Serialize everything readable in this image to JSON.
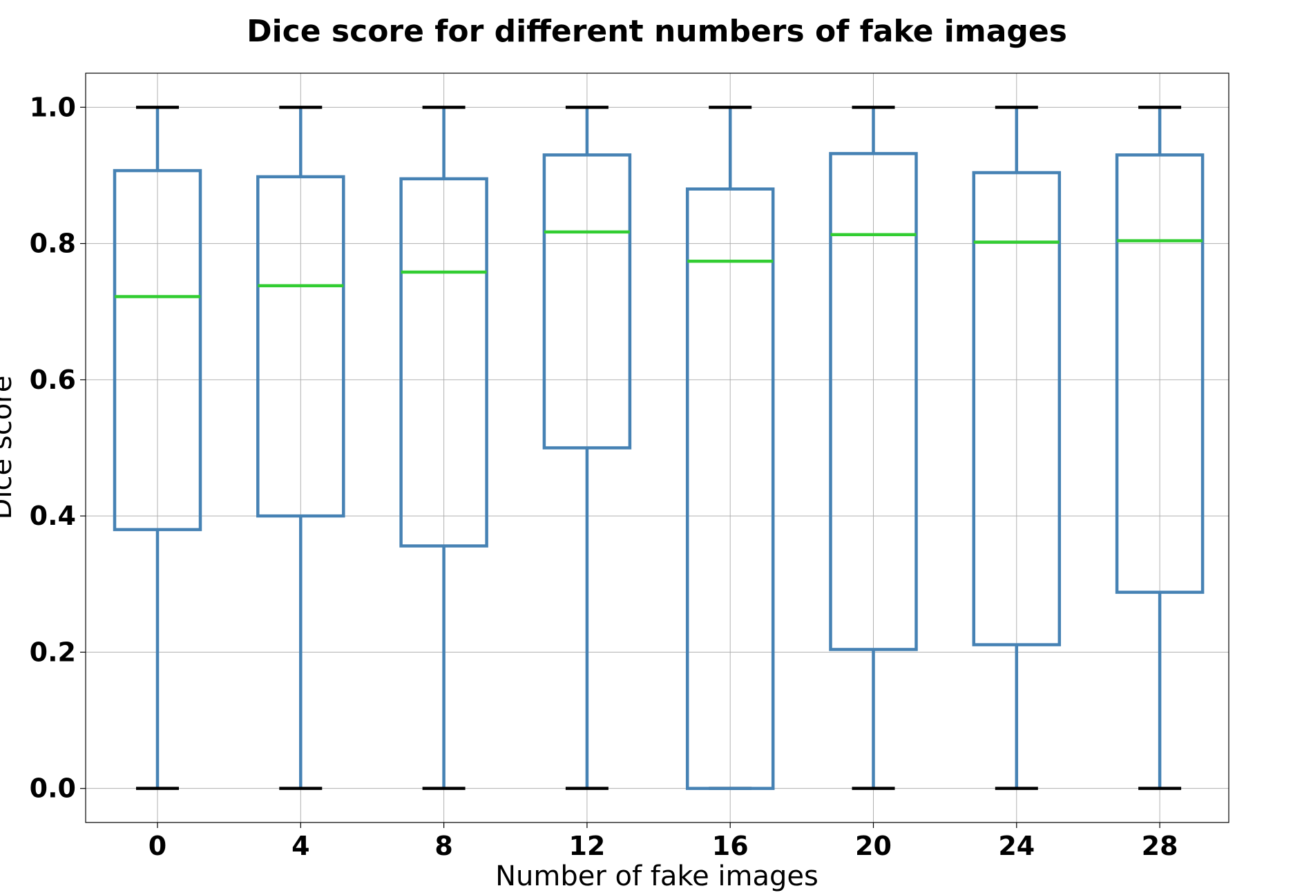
{
  "chart_data": {
    "type": "box",
    "title": "Dice score for different numbers of fake images",
    "xlabel": "Number of fake images",
    "ylabel": "Dice score",
    "categories": [
      "0",
      "4",
      "8",
      "12",
      "16",
      "20",
      "24",
      "28"
    ],
    "ylim": [
      -0.05,
      1.05
    ],
    "yticks": [
      0.0,
      0.2,
      0.4,
      0.6,
      0.8,
      1.0
    ],
    "ytick_labels": [
      "0.0",
      "0.2",
      "0.4",
      "0.6",
      "0.8",
      "1.0"
    ],
    "grid": true,
    "boxes": [
      {
        "category": "0",
        "whisker_low": 0.0,
        "q1": 0.38,
        "median": 0.722,
        "q3": 0.907,
        "whisker_high": 1.0
      },
      {
        "category": "4",
        "whisker_low": 0.0,
        "q1": 0.4,
        "median": 0.738,
        "q3": 0.898,
        "whisker_high": 1.0
      },
      {
        "category": "8",
        "whisker_low": 0.0,
        "q1": 0.356,
        "median": 0.758,
        "q3": 0.895,
        "whisker_high": 1.0
      },
      {
        "category": "12",
        "whisker_low": 0.0,
        "q1": 0.5,
        "median": 0.817,
        "q3": 0.93,
        "whisker_high": 1.0
      },
      {
        "category": "16",
        "whisker_low": 0.0,
        "q1": 0.0,
        "median": 0.774,
        "q3": 0.88,
        "whisker_high": 1.0
      },
      {
        "category": "20",
        "whisker_low": 0.0,
        "q1": 0.204,
        "median": 0.813,
        "q3": 0.932,
        "whisker_high": 1.0
      },
      {
        "category": "24",
        "whisker_low": 0.0,
        "q1": 0.211,
        "median": 0.802,
        "q3": 0.904,
        "whisker_high": 1.0
      },
      {
        "category": "28",
        "whisker_low": 0.0,
        "q1": 0.288,
        "median": 0.804,
        "q3": 0.93,
        "whisker_high": 1.0
      }
    ],
    "colors": {
      "box": "#4682b4",
      "median": "#32cd32",
      "caps": "#000000",
      "grid": "#b0b0b0",
      "frame": "#000000"
    }
  }
}
